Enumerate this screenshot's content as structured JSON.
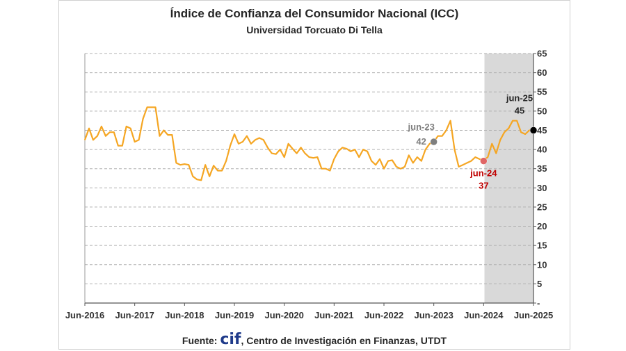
{
  "chart_data": {
    "type": "line",
    "title": "Índice de Confianza del Consumidor Nacional (ICC)",
    "subtitle": "Universidad Torcuato Di Tella",
    "xlabel": "",
    "ylabel": "",
    "ylim": [
      0,
      65
    ],
    "y_ticks": [
      "-",
      "5",
      "10",
      "15",
      "20",
      "25",
      "30",
      "35",
      "40",
      "45",
      "50",
      "55",
      "60",
      "65"
    ],
    "x_tick_labels": [
      "Jun-2016",
      "Jun-2017",
      "Jun-2018",
      "Jun-2019",
      "Jun-2020",
      "Jun-2021",
      "Jun-2022",
      "Jun-2023",
      "Jun-2024",
      "Jun-2025"
    ],
    "grid": "horizontal dashed",
    "shaded_region": {
      "from": "2024-07",
      "to": "2025-06",
      "color": "#d9d9d9"
    },
    "line_color": "#f5a623",
    "series": [
      {
        "x": [
          "2016-06",
          "2016-07",
          "2016-08",
          "2016-09",
          "2016-10",
          "2016-11",
          "2016-12",
          "2017-01",
          "2017-02",
          "2017-03",
          "2017-04",
          "2017-05",
          "2017-06",
          "2017-07",
          "2017-08",
          "2017-09",
          "2017-10",
          "2017-11",
          "2017-12",
          "2018-01",
          "2018-02",
          "2018-03",
          "2018-04",
          "2018-05",
          "2018-06",
          "2018-07",
          "2018-08",
          "2018-09",
          "2018-10",
          "2018-11",
          "2018-12",
          "2019-01",
          "2019-02",
          "2019-03",
          "2019-04",
          "2019-05",
          "2019-06",
          "2019-07",
          "2019-08",
          "2019-09",
          "2019-10",
          "2019-11",
          "2019-12",
          "2020-01",
          "2020-02",
          "2020-03",
          "2020-04",
          "2020-05",
          "2020-06",
          "2020-07",
          "2020-08",
          "2020-09",
          "2020-10",
          "2020-11",
          "2020-12",
          "2021-01",
          "2021-02",
          "2021-03",
          "2021-04",
          "2021-05",
          "2021-06",
          "2021-07",
          "2021-08",
          "2021-09",
          "2021-10",
          "2021-11",
          "2021-12",
          "2022-01",
          "2022-02",
          "2022-03",
          "2022-04",
          "2022-05",
          "2022-06",
          "2022-07",
          "2022-08",
          "2022-09",
          "2022-10",
          "2022-11",
          "2022-12",
          "2023-01",
          "2023-02",
          "2023-03",
          "2023-04",
          "2023-05",
          "2023-06",
          "2023-07",
          "2023-08",
          "2023-09",
          "2023-10",
          "2023-11",
          "2023-12",
          "2024-01",
          "2024-02",
          "2024-03",
          "2024-04",
          "2024-05",
          "2024-06",
          "2024-07",
          "2024-08",
          "2024-09",
          "2024-10",
          "2024-11",
          "2024-12",
          "2025-01",
          "2025-02",
          "2025-03",
          "2025-04",
          "2025-05",
          "2025-06"
        ],
        "values": [
          42.5,
          45.5,
          42.5,
          43.5,
          46,
          43.5,
          44.5,
          44.5,
          41,
          41,
          46,
          45.5,
          42,
          42.5,
          48,
          51,
          51,
          51,
          43.5,
          45,
          43.8,
          43.8,
          36.5,
          36,
          36.2,
          36,
          33,
          32.2,
          32,
          36,
          33,
          35.8,
          34.5,
          34.5,
          37,
          41,
          44,
          41.5,
          42,
          43.5,
          41.5,
          42.5,
          43,
          42.5,
          40.5,
          39,
          38.8,
          40,
          38,
          41.5,
          40.2,
          39,
          40.5,
          39,
          38,
          37.8,
          38,
          35,
          35,
          34.5,
          37.5,
          39.5,
          40.5,
          40.2,
          39.5,
          40,
          38,
          40,
          39.5,
          37,
          36,
          37.5,
          35,
          37,
          37.2,
          35.5,
          35,
          35.5,
          38.5,
          36.5,
          38,
          37,
          40,
          41.5,
          42,
          43.5,
          43.5,
          45,
          47.5,
          40,
          35.5,
          36,
          36.5,
          37,
          38,
          37.5,
          37.2,
          38,
          41.5,
          39,
          42.5,
          44.5,
          45.5,
          47.5,
          47.5,
          44.5,
          44,
          45,
          45
        ]
      }
    ],
    "annotations": [
      {
        "date": "2023-06",
        "value": 42,
        "label": "jun-23",
        "value_label": "42",
        "marker_color": "#7f7f7f",
        "text_color": "#7f7f7f"
      },
      {
        "date": "2024-06",
        "value": 37,
        "label": "jun-24",
        "value_label": "37",
        "marker_color": "#e06666",
        "text_color": "#c00000"
      },
      {
        "date": "2025-06",
        "value": 45,
        "label": "jun-25",
        "value_label": "45",
        "marker_color": "#000000",
        "text_color": "#262626"
      }
    ]
  },
  "source": {
    "prefix": "Fuente: ",
    "brand": "cif",
    "rest": ", Centro de Investigación en Finanzas, UTDT"
  }
}
